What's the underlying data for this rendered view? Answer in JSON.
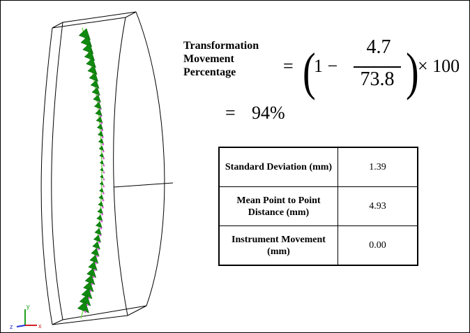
{
  "formula": {
    "label_lines": [
      "Transformation",
      "Movement",
      "Percentage"
    ],
    "equals": "=",
    "one_minus": "1 −",
    "numerator": "4.7",
    "denominator": "73.8",
    "times": "× 100",
    "result": "94%"
  },
  "table": {
    "rows": [
      {
        "label": "Standard Deviation (mm)",
        "value": "1.39"
      },
      {
        "label": "Mean Point to Point Distance (mm)",
        "value": "4.93"
      },
      {
        "label": "Instrument Movement (mm)",
        "value": "0.00"
      }
    ]
  },
  "axes_triad": {
    "y": "y",
    "z": "z",
    "x": "x"
  },
  "colors": {
    "cone": "#0f8a0f",
    "path_line": "#7ddc55",
    "point_marker": "#e060e0",
    "axis_x": "#d02020",
    "axis_y": "#20a020",
    "axis_z": "#2030d0"
  }
}
